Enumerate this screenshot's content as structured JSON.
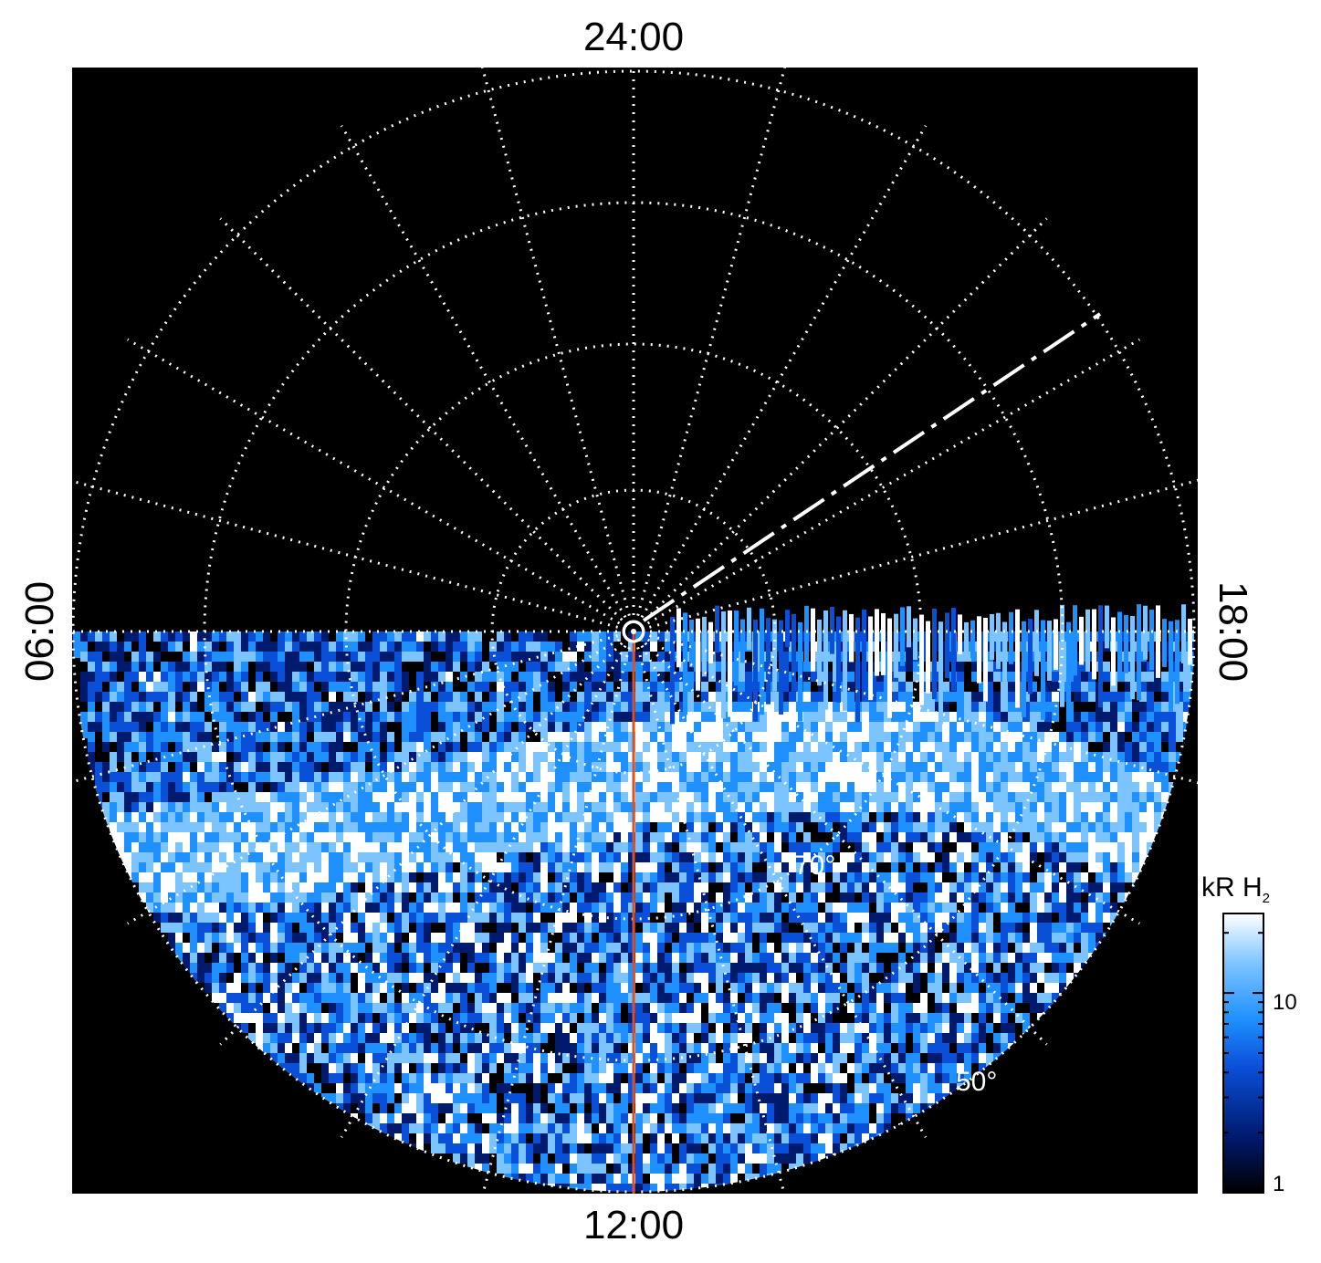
{
  "chart_data": {
    "type": "heatmap",
    "projection": "polar",
    "title": "",
    "time_labels": {
      "top": "24:00",
      "bottom": "12:00",
      "left": "06:00",
      "right": "18:00"
    },
    "latitude_labels": [
      "70°",
      "50°"
    ],
    "colorbar": {
      "title": "kR H",
      "title_subscript": "2",
      "ticks": [
        {
          "value": 1,
          "label": "1"
        },
        {
          "value": 10,
          "label": "10"
        }
      ],
      "range": [
        1,
        25
      ],
      "scale": "log",
      "colors": [
        "#000000",
        "#001a6e",
        "#0a4fd8",
        "#1e90ff",
        "#7cc4ff",
        "#ffffff"
      ]
    },
    "grid": true,
    "background": "#000000",
    "grid_color": "#ffffff",
    "marker_line_color": "#e0501e",
    "emission_band": {
      "description_hidden": true,
      "coverage": "dayside hemisphere, local times 06:00 through 12:00 to 18:00",
      "peak_brightness_kR": 25
    }
  }
}
